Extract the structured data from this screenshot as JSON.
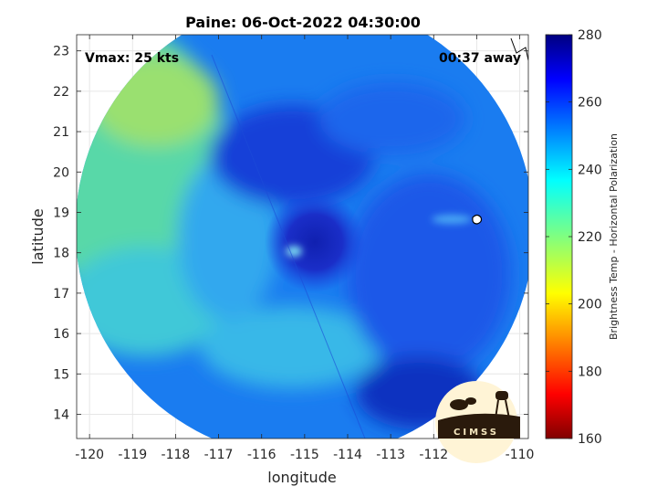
{
  "chart_data": {
    "type": "heatmap",
    "title": "Paine: 06-Oct-2022 04:30:00",
    "xlabel": "longitude",
    "ylabel": "latitude",
    "xlim": [
      -120.3,
      -109.8
    ],
    "ylim": [
      13.4,
      23.4
    ],
    "x_ticks": [
      -120,
      -119,
      -118,
      -117,
      -116,
      -115,
      -114,
      -113,
      -112,
      -111,
      -110
    ],
    "y_ticks": [
      14,
      15,
      16,
      17,
      18,
      19,
      20,
      21,
      22,
      23
    ],
    "grid": true,
    "annotations": {
      "vmax": "Vmax: 25 kts",
      "time_away": "00:37 away"
    },
    "swath": {
      "center_lon": -115.0,
      "center_lat": 18.6,
      "radius_deg": 5.5
    },
    "storm_center": {
      "lon": -115.0,
      "lat": 18.6
    },
    "colorbar": {
      "label": "Brightness Temp - Horizontal Polarization",
      "min": 160,
      "max": 280,
      "ticks": [
        280,
        260,
        240,
        220,
        200,
        180,
        160
      ],
      "colormap": "jet"
    }
  },
  "logo": {
    "text": "CIMSS"
  }
}
